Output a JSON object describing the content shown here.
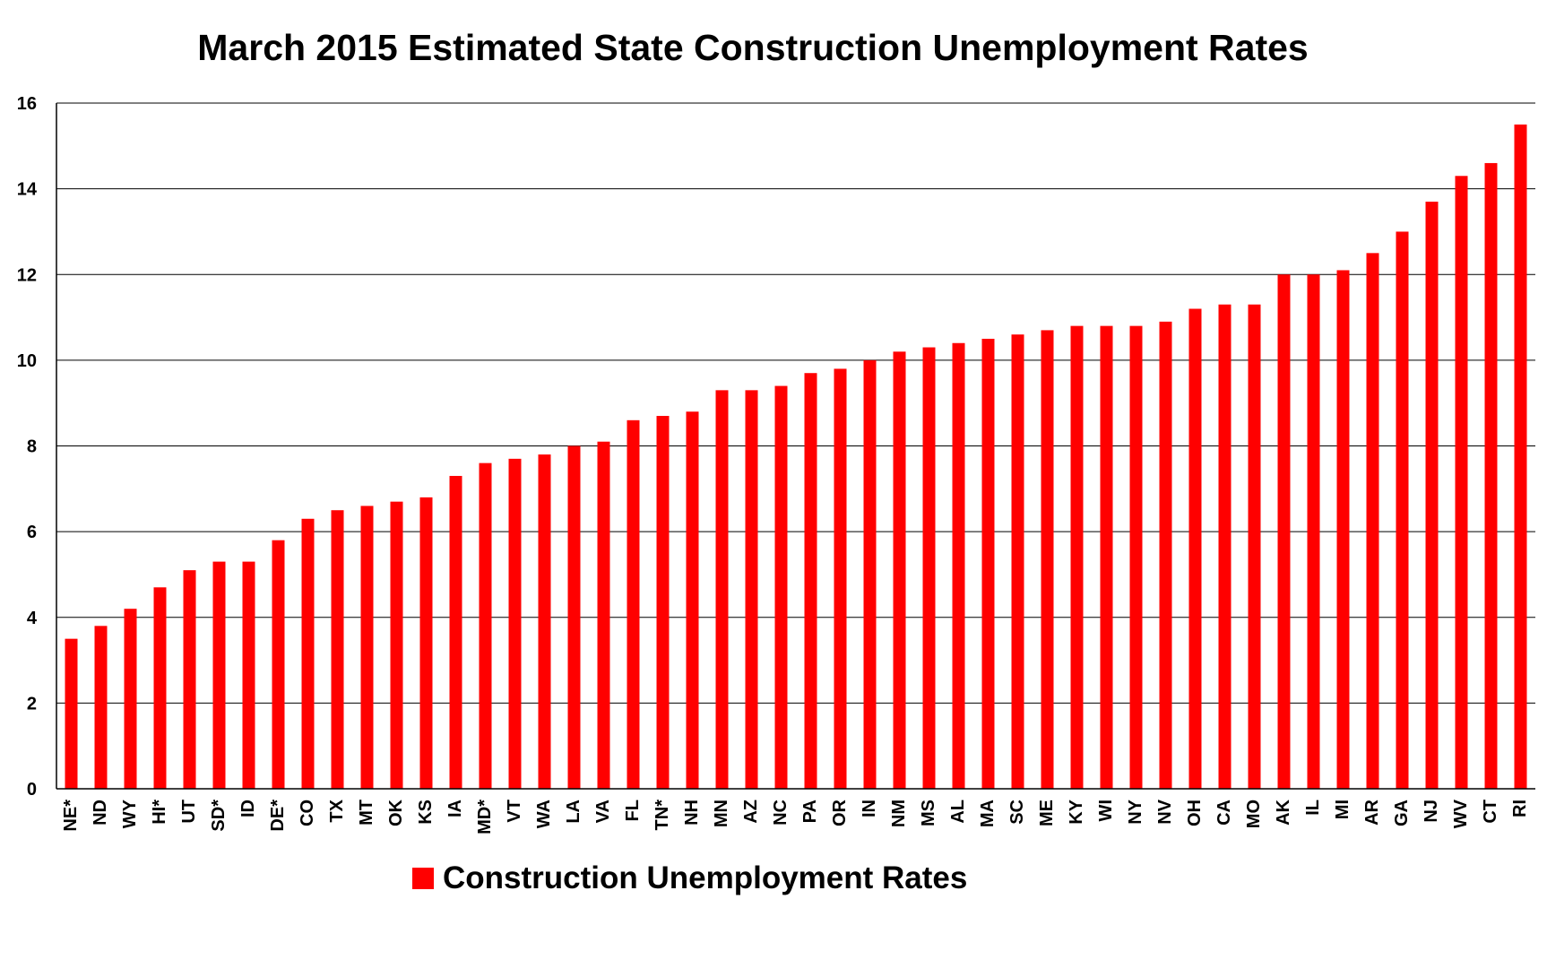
{
  "chart_data": {
    "type": "bar",
    "title": "March 2015 Estimated State Construction Unemployment Rates",
    "xlabel": "",
    "ylabel": "",
    "ylim": [
      0,
      16
    ],
    "yticks": [
      "0",
      "2",
      "4",
      "6",
      "8",
      "10",
      "12",
      "14",
      "16"
    ],
    "grid": true,
    "legend_position": "bottom",
    "bar_color": "#ff0000",
    "categories": [
      "NE*",
      "ND",
      "WY",
      "HI*",
      "UT",
      "SD*",
      "ID",
      "DE*",
      "CO",
      "TX",
      "MT",
      "OK",
      "KS",
      "IA",
      "MD*",
      "VT",
      "WA",
      "LA",
      "VA",
      "FL",
      "TN*",
      "NH",
      "MN",
      "AZ",
      "NC",
      "PA",
      "OR",
      "IN",
      "NM",
      "MS",
      "AL",
      "MA",
      "SC",
      "ME",
      "KY",
      "WI",
      "NY",
      "NV",
      "OH",
      "CA",
      "MO",
      "AK",
      "IL",
      "MI",
      "AR",
      "GA",
      "NJ",
      "WV",
      "CT",
      "RI"
    ],
    "series": [
      {
        "name": "Construction Unemployment Rates",
        "values": [
          3.5,
          3.8,
          4.2,
          4.7,
          5.1,
          5.3,
          5.3,
          5.8,
          6.3,
          6.5,
          6.6,
          6.7,
          6.8,
          7.3,
          7.6,
          7.7,
          7.8,
          8.0,
          8.1,
          8.6,
          8.7,
          8.8,
          9.3,
          9.3,
          9.4,
          9.7,
          9.8,
          10.0,
          10.2,
          10.3,
          10.4,
          10.5,
          10.6,
          10.7,
          10.8,
          10.8,
          10.8,
          10.9,
          11.2,
          11.3,
          11.3,
          12.0,
          12.0,
          12.1,
          12.5,
          13.0,
          13.7,
          14.3,
          14.6,
          15.5
        ]
      }
    ]
  }
}
